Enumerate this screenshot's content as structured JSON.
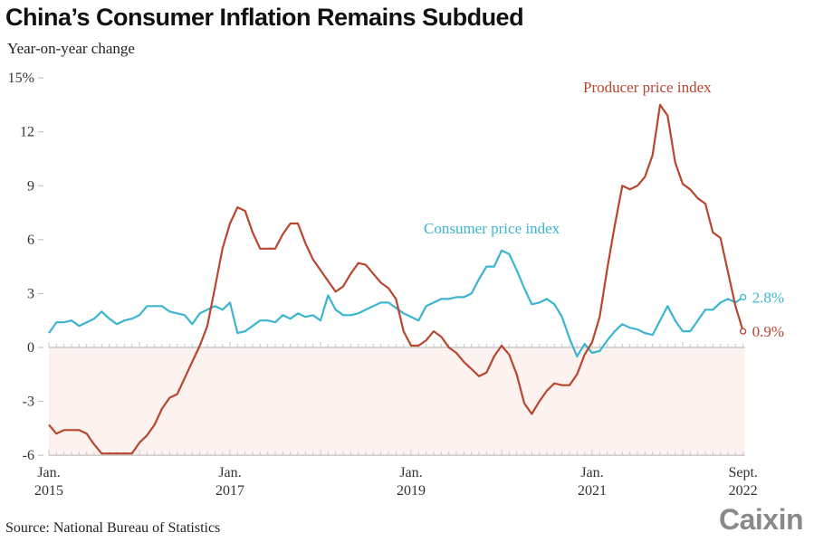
{
  "title": "China’s Consumer Inflation Remains Subdued",
  "subtitle": "Year-on-year change",
  "source": "Source: National Bureau of Statistics",
  "logo": "Caixin",
  "chart_data": {
    "type": "line",
    "title": "China’s Consumer Inflation Remains Subdued",
    "ylabel": "Year-on-year change",
    "ylim": [
      -6,
      15
    ],
    "yticks": [
      "15%",
      "12",
      "9",
      "6",
      "3",
      "0",
      "-3",
      "-6"
    ],
    "ytick_values": [
      15,
      12,
      9,
      6,
      3,
      0,
      -3,
      -6
    ],
    "x_start": "2015-01",
    "x_end": "2022-09",
    "xticks": [
      {
        "date": "2015-01",
        "line1": "Jan.",
        "line2": "2015"
      },
      {
        "date": "2017-01",
        "line1": "Jan.",
        "line2": "2017"
      },
      {
        "date": "2019-01",
        "line1": "Jan.",
        "line2": "2019"
      },
      {
        "date": "2021-01",
        "line1": "Jan.",
        "line2": "2021"
      },
      {
        "date": "2022-09",
        "line1": "Sept.",
        "line2": "2022"
      }
    ],
    "negative_region_shaded": true,
    "series": [
      {
        "name": "Consumer price index",
        "color": "#3bb5d0",
        "end_label": "2.8%",
        "values": [
          0.8,
          1.4,
          1.4,
          1.5,
          1.2,
          1.4,
          1.6,
          2.0,
          1.6,
          1.3,
          1.5,
          1.6,
          1.8,
          2.3,
          2.3,
          2.3,
          2.0,
          1.9,
          1.8,
          1.3,
          1.9,
          2.1,
          2.3,
          2.1,
          2.5,
          0.8,
          0.9,
          1.2,
          1.5,
          1.5,
          1.4,
          1.8,
          1.6,
          1.9,
          1.7,
          1.8,
          1.5,
          2.9,
          2.1,
          1.8,
          1.8,
          1.9,
          2.1,
          2.3,
          2.5,
          2.5,
          2.2,
          1.9,
          1.7,
          1.5,
          2.3,
          2.5,
          2.7,
          2.7,
          2.8,
          2.8,
          3.0,
          3.8,
          4.5,
          4.5,
          5.4,
          5.2,
          4.3,
          3.3,
          2.4,
          2.5,
          2.7,
          2.4,
          1.7,
          0.5,
          -0.5,
          0.2,
          -0.3,
          -0.2,
          0.4,
          0.9,
          1.3,
          1.1,
          1.0,
          0.8,
          0.7,
          1.5,
          2.3,
          1.5,
          0.9,
          0.9,
          1.5,
          2.1,
          2.1,
          2.5,
          2.7,
          2.5,
          2.8
        ]
      },
      {
        "name": "Producer price index",
        "color": "#b9462f",
        "end_label": "0.9%",
        "values": [
          -4.3,
          -4.8,
          -4.6,
          -4.6,
          -4.6,
          -4.8,
          -5.4,
          -5.9,
          -5.9,
          -5.9,
          -5.9,
          -5.9,
          -5.3,
          -4.9,
          -4.3,
          -3.4,
          -2.8,
          -2.6,
          -1.7,
          -0.8,
          0.1,
          1.2,
          3.3,
          5.5,
          6.9,
          7.8,
          7.6,
          6.4,
          5.5,
          5.5,
          5.5,
          6.3,
          6.9,
          6.9,
          5.8,
          4.9,
          4.3,
          3.7,
          3.1,
          3.4,
          4.1,
          4.7,
          4.6,
          4.1,
          3.6,
          3.3,
          2.7,
          0.9,
          0.1,
          0.1,
          0.4,
          0.9,
          0.6,
          0.0,
          -0.3,
          -0.8,
          -1.2,
          -1.6,
          -1.4,
          -0.5,
          0.1,
          -0.4,
          -1.5,
          -3.1,
          -3.7,
          -3.0,
          -2.4,
          -2.0,
          -2.1,
          -2.1,
          -1.5,
          -0.4,
          0.3,
          1.7,
          4.4,
          6.8,
          9.0,
          8.8,
          9.0,
          9.5,
          10.7,
          13.5,
          12.9,
          10.3,
          9.1,
          8.8,
          8.3,
          8.0,
          6.4,
          6.1,
          4.2,
          2.3,
          0.9
        ]
      }
    ]
  }
}
